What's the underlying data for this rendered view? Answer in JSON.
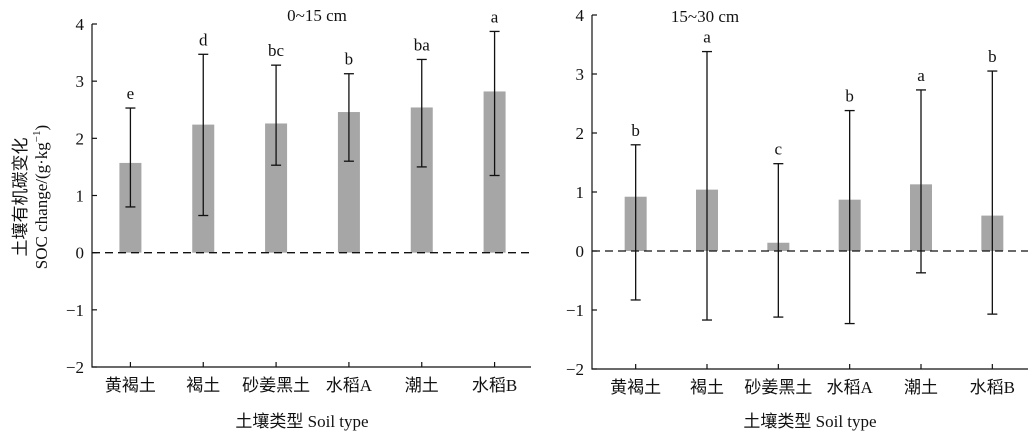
{
  "chart_data": [
    {
      "type": "bar",
      "title": "0~15 cm",
      "xlabel": "土壤类型 Soil type",
      "ylabel_cn": "土壤有机碳变化",
      "ylabel_en": "SOC change/(g·kg",
      "ylabel_sup": "−1",
      "ylabel_end": ")",
      "ylim": [
        -2,
        4
      ],
      "yticks": [
        -2,
        -1,
        0,
        1,
        2,
        3,
        4
      ],
      "ytick_labels": [
        "−2",
        "−1",
        "0",
        "1",
        "2",
        "3",
        "4"
      ],
      "categories": [
        "黄褐土",
        "褐土",
        "砂姜黑土",
        "水稻A",
        "潮土",
        "水稻B"
      ],
      "values": [
        1.57,
        2.24,
        2.26,
        2.46,
        2.54,
        2.82
      ],
      "error_low": [
        0.8,
        0.65,
        1.53,
        1.6,
        1.5,
        1.35
      ],
      "error_high": [
        2.53,
        3.47,
        3.28,
        3.13,
        3.38,
        3.87
      ],
      "letters": [
        "e",
        "d",
        "bc",
        "b",
        "ba",
        "a"
      ],
      "reference_line": 0,
      "bar_color": "#a6a6a6"
    },
    {
      "type": "bar",
      "title": "15~30 cm",
      "xlabel": "土壤类型 Soil type",
      "ylim": [
        -2,
        4
      ],
      "yticks": [
        -2,
        -1,
        0,
        1,
        2,
        3,
        4
      ],
      "ytick_labels": [
        "−2",
        "−1",
        "0",
        "1",
        "2",
        "3",
        "4"
      ],
      "categories": [
        "黄褐土",
        "褐土",
        "砂姜黑土",
        "水稻A",
        "潮土",
        "水稻B"
      ],
      "values": [
        0.92,
        1.04,
        0.14,
        0.87,
        1.13,
        0.6
      ],
      "error_low": [
        -0.83,
        -1.17,
        -1.12,
        -1.23,
        -0.37,
        -1.07
      ],
      "error_high": [
        1.8,
        3.38,
        1.48,
        2.38,
        2.73,
        3.05
      ],
      "letters": [
        "b",
        "a",
        "c",
        "b",
        "a",
        "b"
      ],
      "reference_line": 0,
      "bar_color": "#a6a6a6"
    }
  ]
}
